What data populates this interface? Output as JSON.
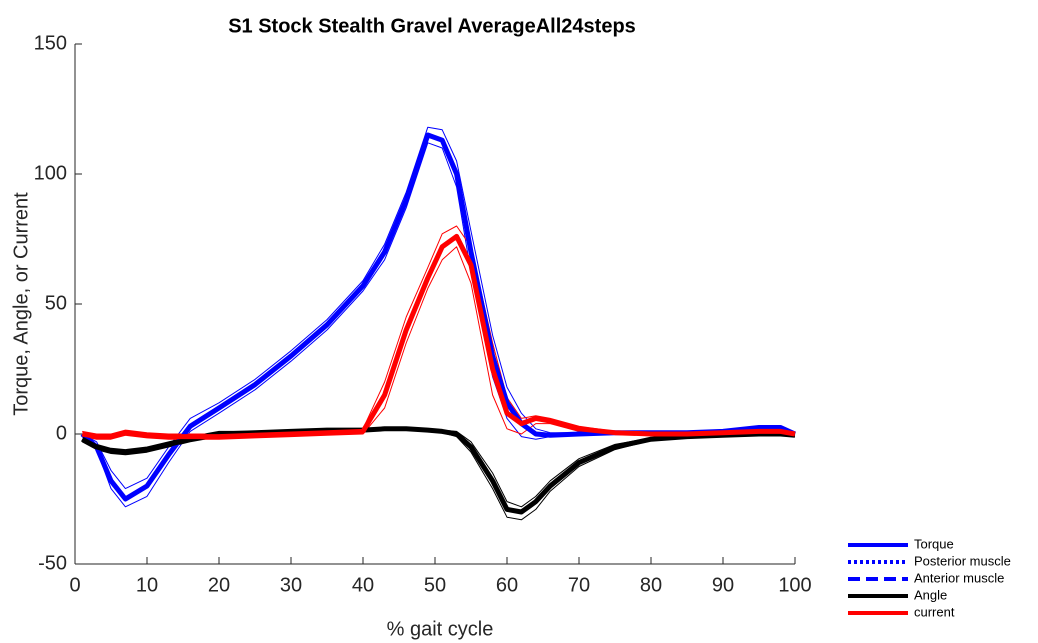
{
  "chart_data": {
    "type": "line",
    "title": "S1 Stock Stealth Gravel AverageAll24steps",
    "x_label": "% gait cycle",
    "y_label": "Torque, Angle, or Current",
    "xlim": [
      0,
      100
    ],
    "ylim": [
      -50,
      150
    ],
    "xticks": [
      0,
      10,
      20,
      30,
      40,
      50,
      60,
      70,
      80,
      90,
      100
    ],
    "yticks": [
      -50,
      0,
      50,
      100,
      150
    ],
    "grid": false,
    "legend": "lower right",
    "x": [
      1,
      3,
      5,
      7,
      10,
      13,
      16,
      20,
      25,
      30,
      35,
      40,
      43,
      46,
      49,
      51,
      53,
      55,
      58,
      60,
      62,
      64,
      66,
      70,
      75,
      80,
      85,
      90,
      95,
      98,
      100
    ],
    "series": [
      {
        "name": "Torque",
        "color": "#0000ff",
        "style": "solid",
        "values": [
          0,
          -5,
          -18,
          -25,
          -20,
          -8,
          3,
          10,
          19,
          30,
          42,
          57,
          70,
          90,
          115,
          113,
          100,
          70,
          30,
          12,
          4,
          0,
          -0.5,
          0,
          0.5,
          0.5,
          0.5,
          1,
          2.5,
          2.5,
          0
        ],
        "upper": [
          0,
          -3,
          -14,
          -21,
          -17,
          -5,
          6,
          12,
          21,
          32,
          44,
          59,
          73,
          93,
          118,
          117,
          105,
          78,
          38,
          18,
          8,
          2,
          0.5,
          0.5,
          1,
          1,
          1,
          1.5,
          3,
          3,
          0.5
        ],
        "lower": [
          0,
          -6,
          -21,
          -28,
          -24,
          -11,
          1,
          8,
          17,
          28,
          40,
          55,
          67,
          87,
          112,
          110,
          95,
          62,
          22,
          6,
          -1,
          -2,
          -1,
          -0.5,
          0,
          0,
          0,
          0.5,
          2,
          2,
          -0.5
        ]
      },
      {
        "name": "Posterior muscle",
        "color": "#0000ff",
        "style": "dotted"
      },
      {
        "name": "Anterior muscle",
        "color": "#0000ff",
        "style": "dashed"
      },
      {
        "name": "Angle",
        "color": "#000000",
        "style": "solid",
        "values": [
          -2,
          -5,
          -6.5,
          -7,
          -6,
          -4,
          -2,
          0,
          0.5,
          1,
          1.5,
          1.5,
          2,
          2,
          1.5,
          1,
          0,
          -5,
          -18,
          -29,
          -30,
          -26,
          -20,
          -11,
          -5,
          -2,
          -1,
          -0.5,
          0,
          0,
          -0.5
        ],
        "upper": [
          -1,
          -4,
          -5.5,
          -6,
          -5,
          -3,
          -1,
          1,
          1,
          1.5,
          2,
          2,
          2.5,
          2.5,
          2,
          1.5,
          1,
          -3,
          -15,
          -26,
          -28,
          -24,
          -18,
          -9.5,
          -4,
          -1.5,
          -0.5,
          0,
          0.5,
          0.5,
          0
        ],
        "lower": [
          -3,
          -6,
          -7.5,
          -8,
          -7,
          -5,
          -3,
          -1,
          0,
          0.5,
          1,
          1,
          1.5,
          1.5,
          1,
          0.5,
          -1,
          -7,
          -21,
          -32,
          -33,
          -29,
          -22,
          -12.5,
          -6,
          -2.5,
          -1.5,
          -1,
          -0.5,
          -0.5,
          -1
        ]
      },
      {
        "name": "current",
        "color": "#ff0000",
        "style": "solid",
        "values": [
          0,
          -1,
          -1,
          0.5,
          -0.5,
          -1,
          -1,
          -1,
          -0.5,
          0,
          0.5,
          1,
          15,
          40,
          60,
          72,
          76,
          65,
          25,
          8,
          4,
          6,
          5,
          2,
          0.5,
          0,
          0,
          0.5,
          1,
          1,
          0
        ],
        "upper": [
          1,
          0,
          0,
          1.5,
          0.5,
          0,
          0,
          0,
          0.5,
          1,
          1.5,
          2,
          20,
          45,
          64,
          77,
          80,
          72,
          35,
          14,
          6,
          7,
          6,
          3,
          1,
          0.5,
          0.5,
          1,
          1.5,
          1.5,
          0.5
        ],
        "lower": [
          -1,
          -2,
          -2,
          -0.5,
          -1.5,
          -2,
          -2,
          -2,
          -1.5,
          -1,
          -0.5,
          0,
          10,
          35,
          56,
          67,
          72,
          58,
          15,
          2,
          0,
          4,
          4,
          1,
          0,
          -0.5,
          -0.5,
          0,
          0.5,
          0.5,
          -0.5
        ]
      }
    ]
  }
}
